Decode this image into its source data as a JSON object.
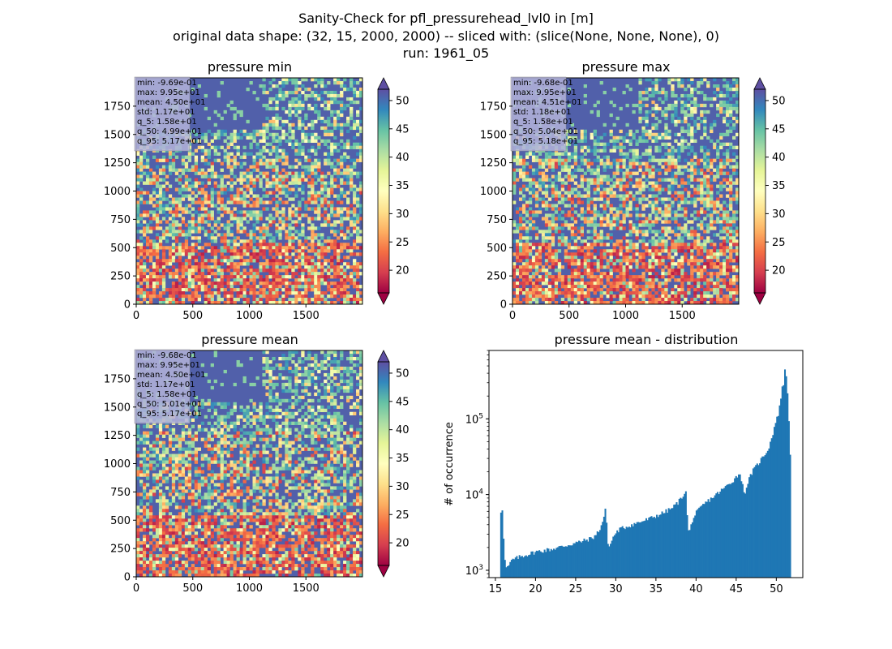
{
  "figure": {
    "title_lines": [
      "Sanity-Check for pfl_pressurehead_lvl0 in [m]",
      "original data shape: (32, 15, 2000, 2000) -- sliced with: (slice(None, None, None), 0)",
      "run: 1961_05"
    ]
  },
  "chart_data": [
    {
      "type": "heatmap",
      "title": "pressure min",
      "xlim": [
        0,
        2000
      ],
      "ylim": [
        0,
        2000
      ],
      "xticks": [
        0,
        500,
        1000,
        1500
      ],
      "yticks": [
        0,
        250,
        500,
        750,
        1000,
        1250,
        1500,
        1750
      ],
      "colormap": "Spectral",
      "colorbar": {
        "range": [
          16,
          52
        ],
        "ticks": [
          20,
          25,
          30,
          35,
          40,
          45,
          50
        ],
        "extend": "both"
      },
      "stats": [
        "min: -9.69e-01",
        "max: 9.95e+01",
        "mean: 4.50e+01",
        "std: 1.17e+01",
        "q_5: 1.58e+01",
        "q_50: 4.99e+01",
        "q_95: 5.17e+01"
      ]
    },
    {
      "type": "heatmap",
      "title": "pressure max",
      "xlim": [
        0,
        2000
      ],
      "ylim": [
        0,
        2000
      ],
      "xticks": [
        0,
        500,
        1000,
        1500
      ],
      "yticks": [
        0,
        250,
        500,
        750,
        1000,
        1250,
        1500,
        1750
      ],
      "colormap": "Spectral",
      "colorbar": {
        "range": [
          16,
          52
        ],
        "ticks": [
          20,
          25,
          30,
          35,
          40,
          45,
          50
        ],
        "extend": "both"
      },
      "stats": [
        "min: -9.68e-01",
        "max: 9.95e+01",
        "mean: 4.51e+01",
        "std: 1.18e+01",
        "q_5: 1.58e+01",
        "q_50: 5.04e+01",
        "q_95: 5.18e+01"
      ]
    },
    {
      "type": "heatmap",
      "title": "pressure mean",
      "xlim": [
        0,
        2000
      ],
      "ylim": [
        0,
        2000
      ],
      "xticks": [
        0,
        500,
        1000,
        1500
      ],
      "yticks": [
        0,
        250,
        500,
        750,
        1000,
        1250,
        1500,
        1750
      ],
      "colormap": "Spectral",
      "colorbar": {
        "range": [
          16,
          52
        ],
        "ticks": [
          20,
          25,
          30,
          35,
          40,
          45,
          50
        ],
        "extend": "both"
      },
      "stats": [
        "min: -9.68e-01",
        "max: 9.95e+01",
        "mean: 4.50e+01",
        "std: 1.17e+01",
        "q_5: 1.58e+01",
        "q_50: 5.01e+01",
        "q_95: 5.17e+01"
      ]
    },
    {
      "type": "bar",
      "title": "pressure mean - distribution",
      "ylabel": "# of occurrence",
      "yscale": "log",
      "xlim": [
        14.2,
        53.3
      ],
      "ylim": [
        800,
        800000
      ],
      "xticks": [
        15,
        20,
        25,
        30,
        35,
        40,
        45,
        50
      ],
      "yticks": [
        {
          "value": 1000,
          "label": "10",
          "exp": "3"
        },
        {
          "value": 10000,
          "label": "10",
          "exp": "4"
        },
        {
          "value": 100000,
          "label": "10",
          "exp": "5"
        }
      ],
      "bar_color": "#1f77b4",
      "profile_x": [
        15.6,
        15.7,
        15.8,
        15.9,
        16.0,
        16.2,
        16.4,
        16.8,
        17.0,
        18.0,
        20.0,
        22.0,
        24.0,
        26.0,
        27.0,
        27.5,
        28.0,
        28.4,
        28.7,
        29.0,
        29.2,
        29.5,
        29.8,
        30.0,
        30.5,
        32.0,
        34.0,
        36.0,
        37.0,
        37.8,
        38.3,
        38.7,
        38.9,
        39.1,
        39.5,
        40.0,
        41.0,
        43.0,
        44.5,
        45.2,
        45.5,
        46.0,
        46.5,
        47.0,
        48.0,
        49.0,
        49.5,
        49.9,
        50.2,
        50.5,
        50.7,
        50.9,
        51.0,
        51.1,
        51.2,
        51.4,
        51.6,
        51.8
      ],
      "profile_y": [
        5000,
        6200,
        6400,
        6600,
        2900,
        1200,
        1050,
        1200,
        1350,
        1500,
        1750,
        1900,
        2150,
        2450,
        2650,
        2900,
        3500,
        4500,
        6500,
        2400,
        2000,
        2500,
        2900,
        3100,
        3500,
        4000,
        4700,
        5800,
        6600,
        8000,
        9500,
        11500,
        5000,
        2900,
        4500,
        5700,
        7500,
        11000,
        15000,
        18000,
        19000,
        10000,
        15000,
        20000,
        28000,
        40000,
        60000,
        90000,
        110000,
        170000,
        250000,
        280000,
        320000,
        600000,
        420000,
        200000,
        80000,
        20000
      ]
    }
  ]
}
